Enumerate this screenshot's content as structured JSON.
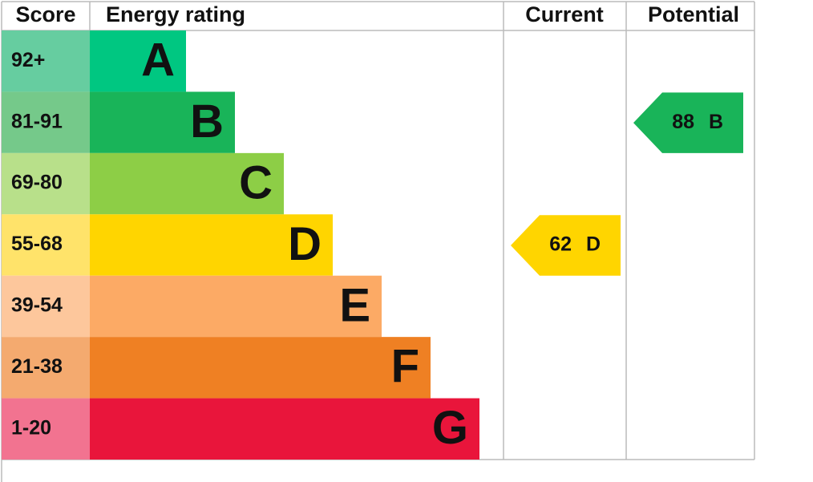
{
  "header": {
    "score": "Score",
    "rating": "Energy rating",
    "current": "Current",
    "potential": "Potential"
  },
  "bands": [
    {
      "score": "92+",
      "letter": "A",
      "color": "#00c781",
      "score_color": "#66cda0"
    },
    {
      "score": "81-91",
      "letter": "B",
      "color": "#19b459",
      "score_color": "#75c98a"
    },
    {
      "score": "69-80",
      "letter": "C",
      "color": "#8dce46",
      "score_color": "#b8e08a"
    },
    {
      "score": "55-68",
      "letter": "D",
      "color": "#ffd500",
      "score_color": "#ffe36a"
    },
    {
      "score": "39-54",
      "letter": "E",
      "color": "#fcaa65",
      "score_color": "#fdc79c"
    },
    {
      "score": "21-38",
      "letter": "F",
      "color": "#ef8023",
      "score_color": "#f4aa6f"
    },
    {
      "score": "1-20",
      "letter": "G",
      "color": "#e9153b",
      "score_color": "#f27390"
    }
  ],
  "current": {
    "value": 62,
    "band": "D"
  },
  "potential": {
    "value": 88,
    "band": "B"
  }
}
